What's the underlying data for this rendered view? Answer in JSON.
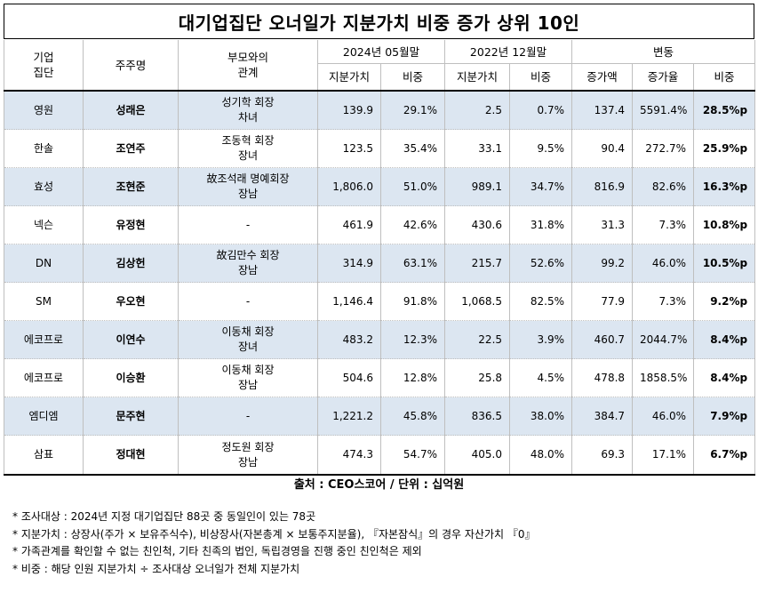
{
  "title": "대기업집단 오너일가 지분가치 비중 증가 상위 10인",
  "header": {
    "group": "기업\n집단",
    "holder": "주주명",
    "relation": "부모와의\n관계",
    "period_2024": "2024년 05월말",
    "period_2022": "2022년 12월말",
    "change": "변동",
    "value": "지분가치",
    "share": "비중",
    "increase_amount": "증가액",
    "increase_rate": "증가율",
    "share_change": "비중"
  },
  "rows": [
    {
      "group": "영원",
      "holder": "성래은",
      "rel1": "성기학 회장",
      "rel2": "차녀",
      "v24": "139.9",
      "s24": "29.1%",
      "v22": "2.5",
      "s22": "0.7%",
      "inc": "137.4",
      "rate": "5591.4%",
      "chg": "28.5%p"
    },
    {
      "group": "한솔",
      "holder": "조연주",
      "rel1": "조동혁 회장",
      "rel2": "장녀",
      "v24": "123.5",
      "s24": "35.4%",
      "v22": "33.1",
      "s22": "9.5%",
      "inc": "90.4",
      "rate": "272.7%",
      "chg": "25.9%p"
    },
    {
      "group": "효성",
      "holder": "조현준",
      "rel1": "故조석래 명예회장",
      "rel2": "장남",
      "v24": "1,806.0",
      "s24": "51.0%",
      "v22": "989.1",
      "s22": "34.7%",
      "inc": "816.9",
      "rate": "82.6%",
      "chg": "16.3%p"
    },
    {
      "group": "넥슨",
      "holder": "유정현",
      "rel1": "-",
      "rel2": "",
      "v24": "461.9",
      "s24": "42.6%",
      "v22": "430.6",
      "s22": "31.8%",
      "inc": "31.3",
      "rate": "7.3%",
      "chg": "10.8%p"
    },
    {
      "group": "DN",
      "holder": "김상헌",
      "rel1": "故김만수 회장",
      "rel2": "장남",
      "v24": "314.9",
      "s24": "63.1%",
      "v22": "215.7",
      "s22": "52.6%",
      "inc": "99.2",
      "rate": "46.0%",
      "chg": "10.5%p"
    },
    {
      "group": "SM",
      "holder": "우오현",
      "rel1": "-",
      "rel2": "",
      "v24": "1,146.4",
      "s24": "91.8%",
      "v22": "1,068.5",
      "s22": "82.5%",
      "inc": "77.9",
      "rate": "7.3%",
      "chg": "9.2%p"
    },
    {
      "group": "에코프로",
      "holder": "이연수",
      "rel1": "이동채 회장",
      "rel2": "장녀",
      "v24": "483.2",
      "s24": "12.3%",
      "v22": "22.5",
      "s22": "3.9%",
      "inc": "460.7",
      "rate": "2044.7%",
      "chg": "8.4%p"
    },
    {
      "group": "에코프로",
      "holder": "이승환",
      "rel1": "이동채 회장",
      "rel2": "장남",
      "v24": "504.6",
      "s24": "12.8%",
      "v22": "25.8",
      "s22": "4.5%",
      "inc": "478.8",
      "rate": "1858.5%",
      "chg": "8.4%p"
    },
    {
      "group": "엠디엠",
      "holder": "문주현",
      "rel1": "-",
      "rel2": "",
      "v24": "1,221.2",
      "s24": "45.8%",
      "v22": "836.5",
      "s22": "38.0%",
      "inc": "384.7",
      "rate": "46.0%",
      "chg": "7.9%p"
    },
    {
      "group": "삼표",
      "holder": "정대현",
      "rel1": "정도원 회장",
      "rel2": "장남",
      "v24": "474.3",
      "s24": "54.7%",
      "v22": "405.0",
      "s22": "48.0%",
      "inc": "69.3",
      "rate": "17.1%",
      "chg": "6.7%p"
    }
  ],
  "source": "출처 : CEO스코어 / 단위 : 십억원",
  "notes": [
    "* 조사대상 : 2024년 지정 대기업집단 88곳 중 동일인이 있는 78곳",
    "* 지분가치 : 상장사(주가 × 보유주식수), 비상장사(자본총계 × 보통주지분율), 『자본잠식』의 경우 자산가치 『0』",
    "* 가족관계를 확인할 수 없는 친인척, 기타 친족의 법인, 독립경영을 진행 중인 친인척은 제외",
    "* 비중 : 해당 인원 지분가치 ÷ 조사대상 오너일가 전체 지분가치"
  ]
}
